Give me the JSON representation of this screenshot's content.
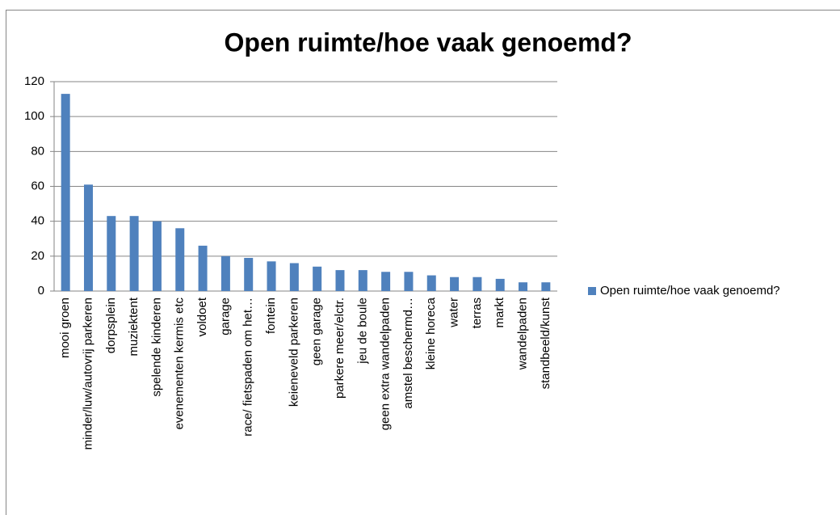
{
  "chart_data": {
    "type": "bar",
    "title": "Open ruimte/hoe vaak genoemd?",
    "categories": [
      "mooi groen",
      "minder/luw/autovrij parkeren",
      "dorpsplein",
      "muziektent",
      "spelende kinderen",
      "evenementen kermis etc",
      "voldoet",
      "garage",
      "race/ fietspaden om het…",
      "fontein",
      "keieneveld parkeren",
      "geen garage",
      "parkere meer/elctr.",
      "jeu de boule",
      "geen extra wandelpaden",
      "amstel beschermd…",
      "kleine horeca",
      "water",
      "terras",
      "markt",
      "wandelpaden",
      "standbeeld/kunst"
    ],
    "series": [
      {
        "name": "Open ruimte/hoe vaak genoemd?",
        "color": "#4f81bd",
        "values": [
          113,
          61,
          43,
          43,
          40,
          36,
          26,
          20,
          19,
          17,
          16,
          14,
          12,
          12,
          11,
          11,
          9,
          8,
          8,
          7,
          5,
          5
        ]
      }
    ],
    "ylim": [
      0,
      120
    ],
    "yticks": [
      0,
      20,
      40,
      60,
      80,
      100,
      120
    ],
    "grid": true,
    "legend": "right"
  }
}
